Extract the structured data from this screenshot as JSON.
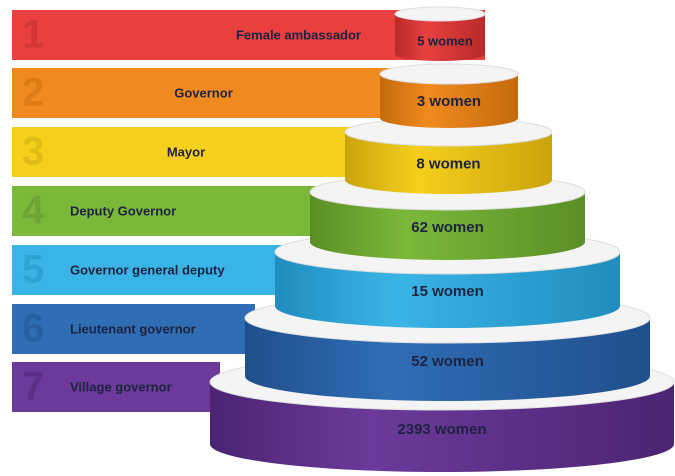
{
  "levels": [
    {
      "rank": "1",
      "title": "Female ambassador",
      "count": "5 women"
    },
    {
      "rank": "2",
      "title": "Governor",
      "count": "3 women"
    },
    {
      "rank": "3",
      "title": "Mayor",
      "count": "8 women"
    },
    {
      "rank": "4",
      "title": "Deputy Governor",
      "count": "62 women"
    },
    {
      "rank": "5",
      "title": "Governor general deputy",
      "count": "15 women"
    },
    {
      "rank": "6",
      "title": "Lieutenant governor",
      "count": "52 women"
    },
    {
      "rank": "7",
      "title": "Village governor",
      "count": "2393 women"
    }
  ]
}
